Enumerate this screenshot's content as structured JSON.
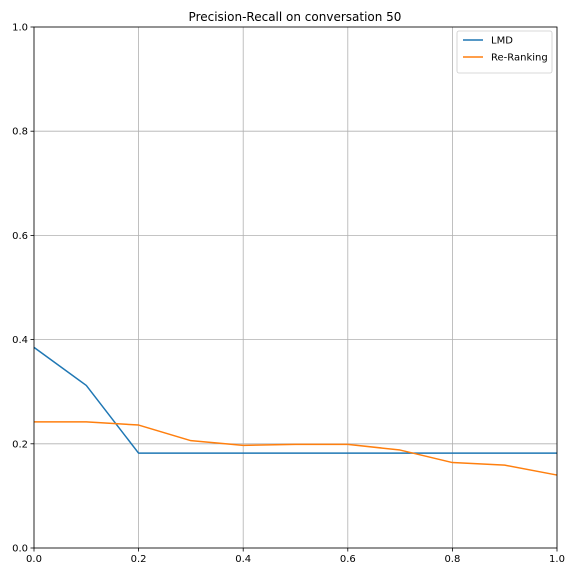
{
  "chart_data": {
    "type": "line",
    "title": "Precision-Recall on conversation 50",
    "xlabel": "",
    "ylabel": "",
    "xlim": [
      0,
      1
    ],
    "ylim": [
      0,
      1
    ],
    "xticks": [
      "0.0",
      "0.2",
      "0.4",
      "0.6",
      "0.8",
      "1.0"
    ],
    "yticks": [
      "0.0",
      "0.2",
      "0.4",
      "0.6",
      "0.8",
      "1.0"
    ],
    "grid": true,
    "legend_position": "top-right",
    "series": [
      {
        "name": "LMD",
        "color": "#1f77b4",
        "x": [
          0.0,
          0.1,
          0.2,
          0.3,
          0.4,
          0.5,
          0.6,
          0.7,
          0.8,
          0.9,
          1.0
        ],
        "y": [
          0.385,
          0.312,
          0.182,
          0.182,
          0.182,
          0.182,
          0.182,
          0.182,
          0.182,
          0.182,
          0.182
        ]
      },
      {
        "name": "Re-Ranking",
        "color": "#ff7f0e",
        "x": [
          0.0,
          0.1,
          0.2,
          0.3,
          0.4,
          0.5,
          0.6,
          0.7,
          0.8,
          0.9,
          1.0
        ],
        "y": [
          0.242,
          0.242,
          0.236,
          0.206,
          0.197,
          0.199,
          0.199,
          0.188,
          0.164,
          0.159,
          0.14
        ]
      }
    ]
  }
}
